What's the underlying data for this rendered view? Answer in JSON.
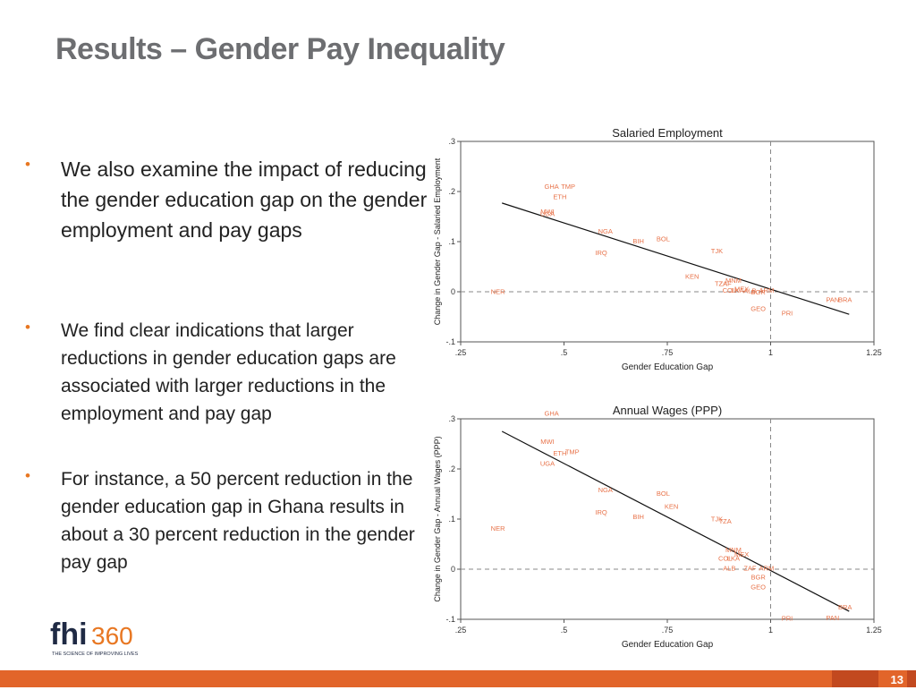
{
  "slide": {
    "title": "Results – Gender Pay Inequality",
    "page_number": "13"
  },
  "bullets": [
    {
      "text": "We also examine the impact of reducing the gender education gap on the gender employment and pay gaps"
    },
    {
      "text": "We find clear indications that larger reductions in gender education gaps are associated with larger reductions in the employment and pay gap"
    },
    {
      "text": "For instance, a 50 percent reduction in the gender education gap in Ghana results in about a 30 percent reduction in the gender pay gap"
    }
  ],
  "logo": {
    "brand": "fhi360",
    "tagline": "THE SCIENCE OF IMPROVING LIVES"
  },
  "colors": {
    "accent": "#e87722",
    "label": "#e8734a",
    "title": "#6d6e71",
    "footer": "#e2652a"
  },
  "chart_data": [
    {
      "type": "scatter",
      "title": "Salaried Employment",
      "xlabel": "Gender Education Gap",
      "ylabel": "Change in Gender Gap - Salaried Employment",
      "xlim": [
        0.25,
        1.25
      ],
      "ylim": [
        -0.1,
        0.3
      ],
      "xticks": [
        ".25",
        ".5",
        ".75",
        "1",
        "1.25"
      ],
      "yticks": [
        "-.1",
        "0",
        ".1",
        ".2",
        ".3"
      ],
      "xtick_values": [
        0.25,
        0.5,
        0.75,
        1,
        1.25
      ],
      "ytick_values": [
        -0.1,
        0,
        0.1,
        0.2,
        0.3
      ],
      "reference_lines": {
        "x": 1,
        "y": 0
      },
      "fit_line": {
        "x": [
          0.35,
          1.19
        ],
        "y": [
          0.177,
          -0.045
        ]
      },
      "points": [
        {
          "label": "GHA",
          "x": 0.47,
          "y": 0.211
        },
        {
          "label": "TMP",
          "x": 0.51,
          "y": 0.211
        },
        {
          "label": "ETH",
          "x": 0.49,
          "y": 0.19
        },
        {
          "label": "MWI",
          "x": 0.46,
          "y": 0.161
        },
        {
          "label": "UGA",
          "x": 0.46,
          "y": 0.156
        },
        {
          "label": "NGA",
          "x": 0.6,
          "y": 0.121
        },
        {
          "label": "BIH",
          "x": 0.68,
          "y": 0.102
        },
        {
          "label": "BOL",
          "x": 0.74,
          "y": 0.106
        },
        {
          "label": "IRQ",
          "x": 0.59,
          "y": 0.079
        },
        {
          "label": "TJK",
          "x": 0.87,
          "y": 0.082
        },
        {
          "label": "KEN",
          "x": 0.81,
          "y": 0.031
        },
        {
          "label": "TZA",
          "x": 0.88,
          "y": 0.017
        },
        {
          "label": "ZAF",
          "x": 0.89,
          "y": 0.017
        },
        {
          "label": "MNM",
          "x": 0.91,
          "y": 0.023
        },
        {
          "label": "COL",
          "x": 0.9,
          "y": 0.004
        },
        {
          "label": "LKA",
          "x": 0.92,
          "y": 0.004
        },
        {
          "label": "MEX",
          "x": 0.93,
          "y": 0.006
        },
        {
          "label": "ALB",
          "x": 0.95,
          "y": 0.003
        },
        {
          "label": "ARM",
          "x": 0.99,
          "y": 0.004
        },
        {
          "label": "BGR",
          "x": 0.97,
          "y": 0.0
        },
        {
          "label": "NER",
          "x": 0.34,
          "y": 0.001
        },
        {
          "label": "GEO",
          "x": 0.97,
          "y": -0.033
        },
        {
          "label": "PRI",
          "x": 1.04,
          "y": -0.042
        },
        {
          "label": "PAN",
          "x": 1.15,
          "y": -0.015
        },
        {
          "label": "BRA",
          "x": 1.18,
          "y": -0.015
        }
      ]
    },
    {
      "type": "scatter",
      "title": "Annual Wages (PPP)",
      "xlabel": "Gender Education Gap",
      "ylabel": "Change in Gender Gap - Annual Wages (PPP)",
      "xlim": [
        0.25,
        1.25
      ],
      "ylim": [
        -0.1,
        0.3
      ],
      "xticks": [
        ".25",
        ".5",
        ".75",
        "1",
        "1.25"
      ],
      "yticks": [
        "-.1",
        "0",
        ".1",
        ".2",
        ".3"
      ],
      "xtick_values": [
        0.25,
        0.5,
        0.75,
        1,
        1.25
      ],
      "ytick_values": [
        -0.1,
        0,
        0.1,
        0.2,
        0.3
      ],
      "reference_lines": {
        "x": 1,
        "y": 0
      },
      "fit_line": {
        "x": [
          0.35,
          1.19
        ],
        "y": [
          0.275,
          -0.084
        ]
      },
      "points": [
        {
          "label": "GHA",
          "x": 0.47,
          "y": 0.312
        },
        {
          "label": "MWI",
          "x": 0.46,
          "y": 0.255
        },
        {
          "label": "ETH",
          "x": 0.49,
          "y": 0.232
        },
        {
          "label": "TMP",
          "x": 0.52,
          "y": 0.235
        },
        {
          "label": "UGA",
          "x": 0.46,
          "y": 0.212
        },
        {
          "label": "NGA",
          "x": 0.6,
          "y": 0.159
        },
        {
          "label": "BOL",
          "x": 0.74,
          "y": 0.152
        },
        {
          "label": "KEN",
          "x": 0.76,
          "y": 0.126
        },
        {
          "label": "IRQ",
          "x": 0.59,
          "y": 0.114
        },
        {
          "label": "BIH",
          "x": 0.68,
          "y": 0.105
        },
        {
          "label": "TJK",
          "x": 0.87,
          "y": 0.101
        },
        {
          "label": "TZA",
          "x": 0.89,
          "y": 0.096
        },
        {
          "label": "NER",
          "x": 0.34,
          "y": 0.082
        },
        {
          "label": "MNM",
          "x": 0.91,
          "y": 0.039
        },
        {
          "label": "MEX",
          "x": 0.93,
          "y": 0.03
        },
        {
          "label": "COL",
          "x": 0.89,
          "y": 0.022
        },
        {
          "label": "LKA",
          "x": 0.91,
          "y": 0.022
        },
        {
          "label": "ALB",
          "x": 0.9,
          "y": 0.003
        },
        {
          "label": "ZAF",
          "x": 0.95,
          "y": 0.003
        },
        {
          "label": "ARM",
          "x": 0.99,
          "y": 0.003
        },
        {
          "label": "BGR",
          "x": 0.97,
          "y": -0.015
        },
        {
          "label": "GEO",
          "x": 0.97,
          "y": -0.035
        },
        {
          "label": "BRA",
          "x": 1.18,
          "y": -0.075
        },
        {
          "label": "PRI",
          "x": 1.04,
          "y": -0.097
        },
        {
          "label": "PAN",
          "x": 1.15,
          "y": -0.096
        }
      ]
    }
  ]
}
